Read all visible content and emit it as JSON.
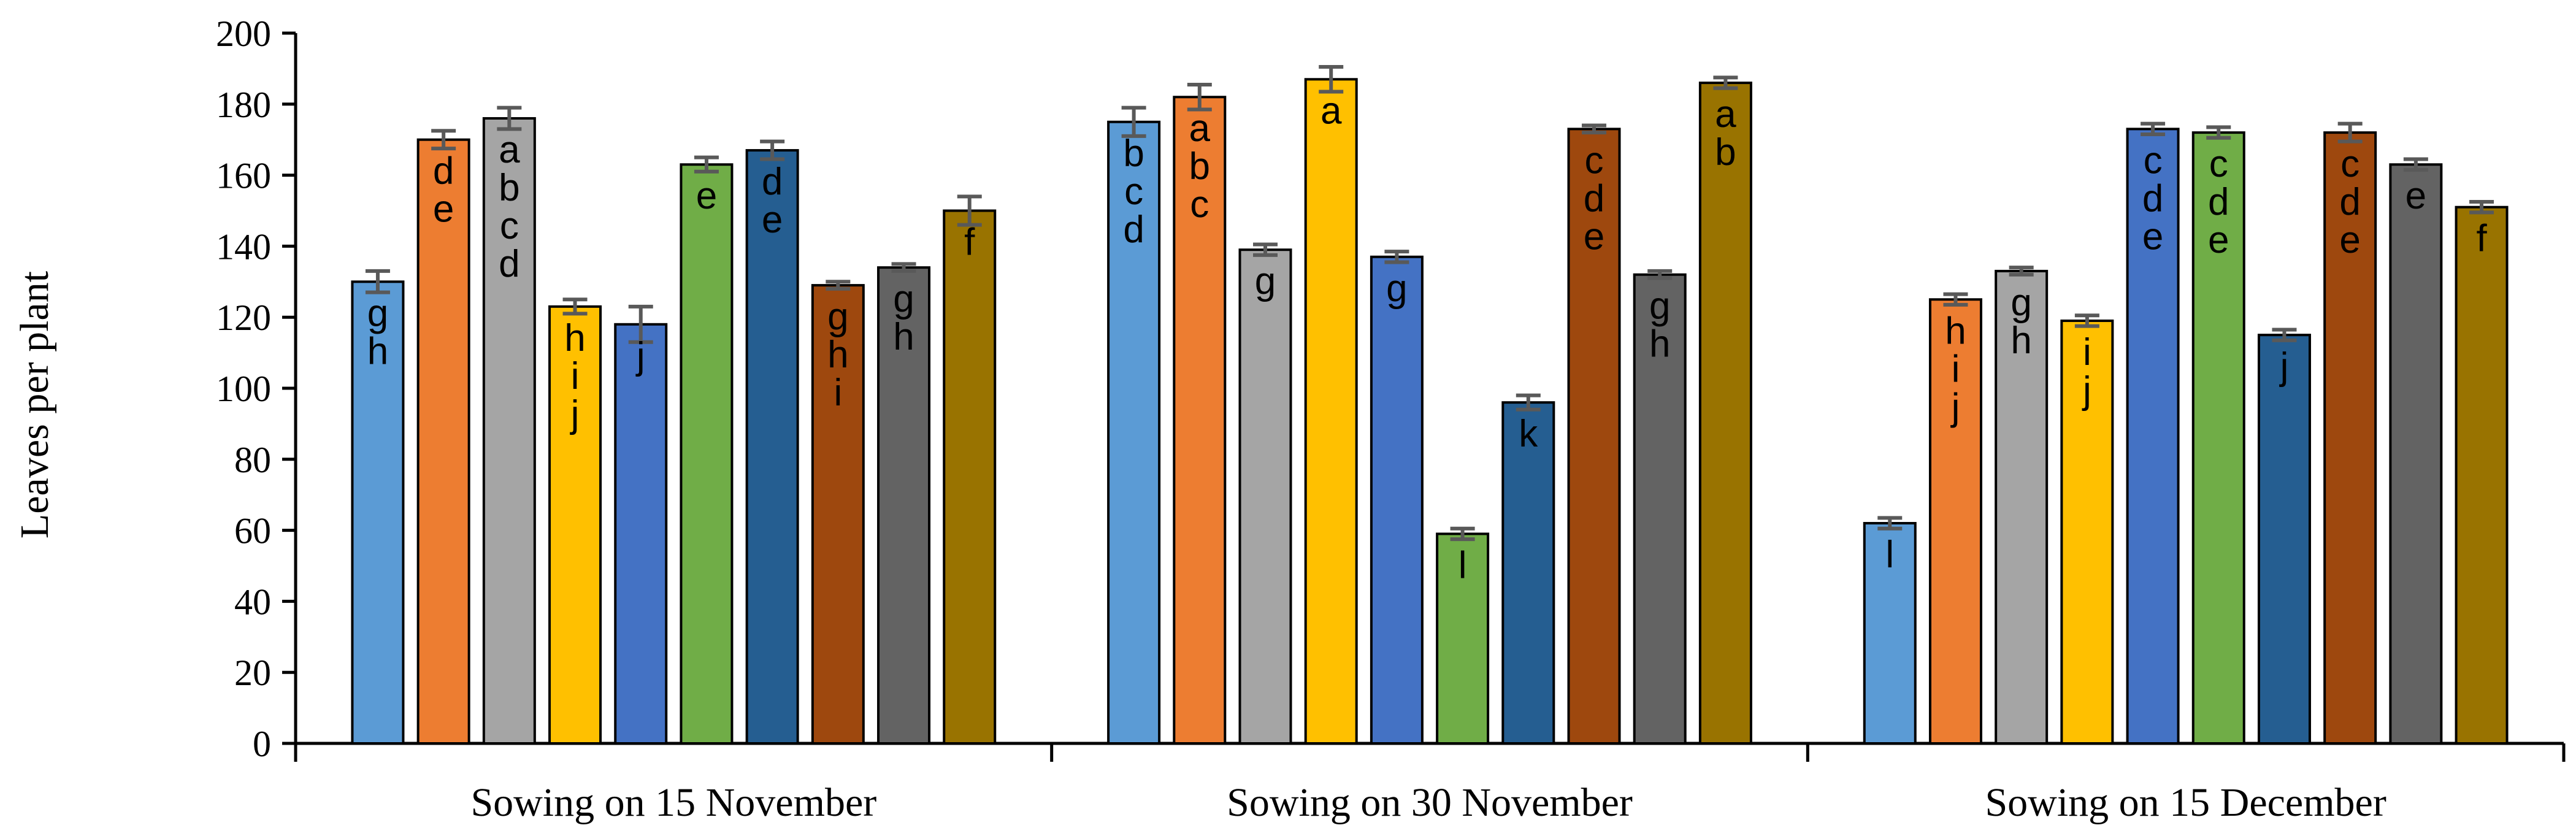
{
  "chart_data": {
    "type": "bar",
    "title": "",
    "xlabel": "",
    "ylabel": "Leaves per plant",
    "ylim": [
      0,
      200
    ],
    "yticks": [
      0,
      20,
      40,
      60,
      80,
      100,
      120,
      140,
      160,
      180,
      200
    ],
    "ytick_labels": [
      "0",
      "20",
      "40",
      "60",
      "80",
      "100",
      "120",
      "140",
      "160",
      "180",
      "200"
    ],
    "grid": false,
    "legend": "none",
    "categories": [
      "Sowing on 15 November",
      "Sowing on 30 November",
      "Sowing on 15 December"
    ],
    "series_colors": [
      "#5B9BD5",
      "#ED7D31",
      "#A5A5A5",
      "#FFC000",
      "#4472C4",
      "#70AD47",
      "#255E91",
      "#9E480E",
      "#636363",
      "#997300"
    ],
    "error_bar_color": "#595959",
    "groups": [
      {
        "values": [
          130,
          170,
          176,
          123,
          118,
          163,
          167,
          129,
          134,
          150
        ],
        "errors": [
          3,
          2.5,
          3,
          2,
          5,
          2,
          2.5,
          1,
          1,
          4
        ],
        "letters": [
          [
            "g",
            "h"
          ],
          [
            "d",
            "e"
          ],
          [
            "a",
            "b",
            "c",
            "d"
          ],
          [
            "h",
            "i",
            "j"
          ],
          [
            "j"
          ],
          [
            "e"
          ],
          [
            "d",
            "e"
          ],
          [
            "g",
            "h",
            "i"
          ],
          [
            "g",
            "h"
          ],
          [
            "f"
          ]
        ]
      },
      {
        "values": [
          175,
          182,
          139,
          187,
          137,
          59,
          96,
          173,
          132,
          186
        ],
        "errors": [
          4,
          3.5,
          1.5,
          3.5,
          1.5,
          1.5,
          2,
          1,
          1,
          1.5
        ],
        "letters": [
          [
            "b",
            "c",
            "d"
          ],
          [
            "a",
            "b",
            "c"
          ],
          [
            "g"
          ],
          [
            "a"
          ],
          [
            "g"
          ],
          [
            "l"
          ],
          [
            "k"
          ],
          [
            "c",
            "d",
            "e"
          ],
          [
            "g",
            "h"
          ],
          [
            "a",
            "b"
          ]
        ]
      },
      {
        "values": [
          62,
          125,
          133,
          119,
          173,
          172,
          115,
          172,
          163,
          151
        ],
        "errors": [
          1.5,
          1.5,
          1,
          1.5,
          1.5,
          1.5,
          1.5,
          2.5,
          1.5,
          1.5
        ],
        "letters": [
          [
            "l"
          ],
          [
            "h",
            "i",
            "j"
          ],
          [
            "g",
            "h"
          ],
          [
            "i",
            "j"
          ],
          [
            "c",
            "d",
            "e"
          ],
          [
            "c",
            "d",
            "e"
          ],
          [
            "j"
          ],
          [
            "c",
            "d",
            "e"
          ],
          [
            "e"
          ],
          [
            "f"
          ]
        ]
      }
    ]
  }
}
